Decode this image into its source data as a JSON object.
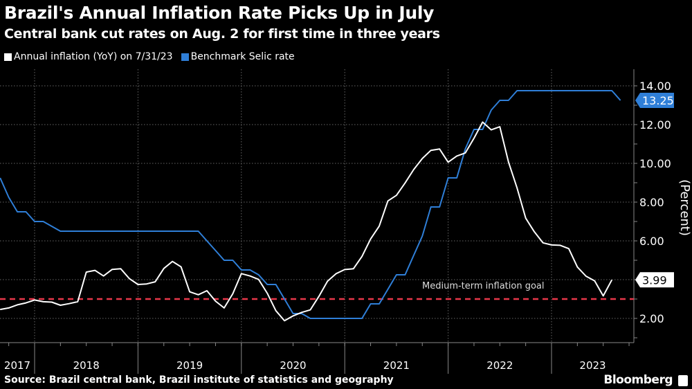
{
  "header": {
    "title": "Brazil's Annual Inflation Rate Picks Up in July",
    "subtitle": "Central bank cut rates on Aug. 2 for first time in three years"
  },
  "footer": {
    "source": "Source: Brazil central bank, Brazil institute of statistics and geography",
    "brand": "Bloomberg"
  },
  "chart_data": {
    "type": "line",
    "title": "Brazil's Annual Inflation Rate Picks Up in July",
    "ylabel": "(Percent)",
    "ylim": [
      0.9,
      14.9
    ],
    "y_ticks": [
      "2.00",
      "6.00",
      "8.00",
      "10.00",
      "12.00",
      "14.00"
    ],
    "x_tick_labels": [
      "2017",
      "2018",
      "2019",
      "2020",
      "2021",
      "2022",
      "2023"
    ],
    "grid": true,
    "legend_position": "top-left",
    "annotation": {
      "label": "Medium-term inflation goal",
      "value": 3.0,
      "color": "#e8374a"
    },
    "series": [
      {
        "name": "Annual inflation (YoY) on 7/31/23",
        "color": "#ffffff",
        "last_label": "3.99",
        "start": "2017-08",
        "values": [
          2.46,
          2.54,
          2.7,
          2.8,
          2.95,
          2.86,
          2.84,
          2.68,
          2.76,
          2.86,
          4.39,
          4.48,
          4.19,
          4.53,
          4.56,
          4.05,
          3.75,
          3.78,
          3.89,
          4.58,
          4.94,
          4.66,
          3.37,
          3.22,
          3.43,
          2.89,
          2.54,
          3.27,
          4.31,
          4.19,
          4.01,
          3.3,
          2.4,
          1.88,
          2.13,
          2.31,
          2.44,
          3.14,
          3.92,
          4.31,
          4.52,
          4.56,
          5.2,
          6.1,
          6.76,
          8.06,
          8.35,
          8.99,
          9.68,
          10.25,
          10.67,
          10.74,
          10.06,
          10.38,
          10.54,
          11.3,
          12.13,
          11.73,
          11.89,
          10.07,
          8.73,
          7.17,
          6.47,
          5.9,
          5.79,
          5.77,
          5.6,
          4.65,
          4.18,
          3.94,
          3.16,
          3.99
        ]
      },
      {
        "name": "Benchmark Selic rate",
        "color": "#2f7fd8",
        "last_label": "13.25",
        "start": "2017-08",
        "values": [
          9.25,
          8.25,
          7.5,
          7.5,
          7.0,
          7.0,
          6.75,
          6.5,
          6.5,
          6.5,
          6.5,
          6.5,
          6.5,
          6.5,
          6.5,
          6.5,
          6.5,
          6.5,
          6.5,
          6.5,
          6.5,
          6.5,
          6.5,
          6.5,
          6.0,
          5.5,
          5.0,
          5.0,
          4.5,
          4.5,
          4.25,
          3.75,
          3.75,
          3.0,
          2.25,
          2.25,
          2.0,
          2.0,
          2.0,
          2.0,
          2.0,
          2.0,
          2.0,
          2.75,
          2.75,
          3.5,
          4.25,
          4.25,
          5.25,
          6.25,
          7.75,
          7.75,
          9.25,
          9.25,
          10.75,
          11.75,
          11.75,
          12.75,
          13.25,
          13.25,
          13.75,
          13.75,
          13.75,
          13.75,
          13.75,
          13.75,
          13.75,
          13.75,
          13.75,
          13.75,
          13.75,
          13.75,
          13.25
        ]
      }
    ]
  }
}
